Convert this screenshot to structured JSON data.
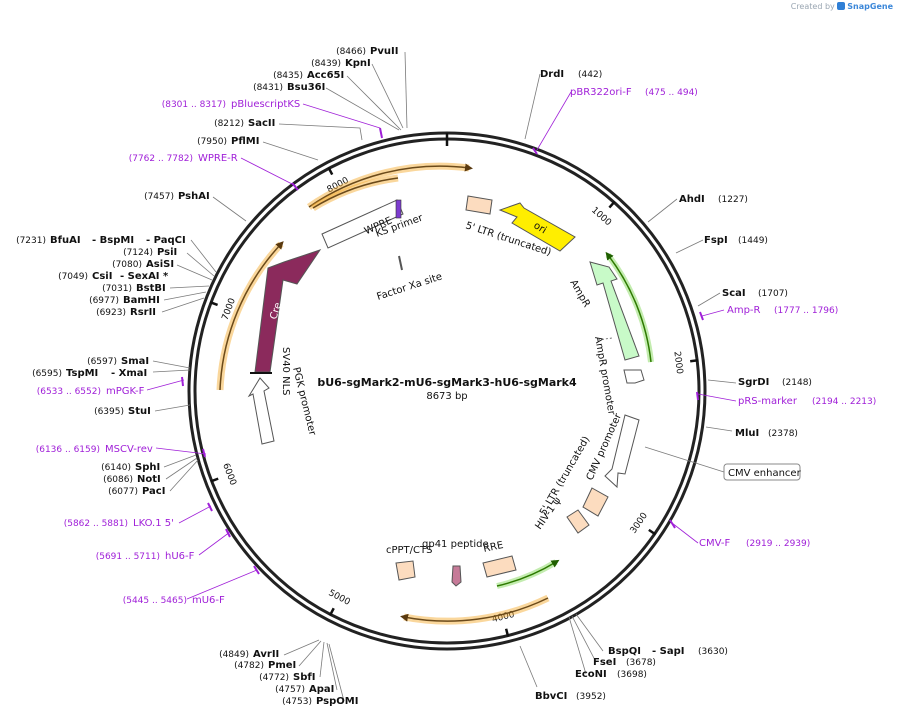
{
  "credit": {
    "prefix": "Created by",
    "brand": "SnapGene"
  },
  "plasmid": {
    "name": "bU6-sgMark2-mU6-sgMark3-hU6-sgMark4",
    "size_label": "8673 bp",
    "length": 8673
  },
  "ticks": [
    "1000",
    "2000",
    "3000",
    "4000",
    "5000",
    "6000",
    "7000",
    "8000"
  ],
  "colors": {
    "orf": "#8b2a5c",
    "ori": "#ffee00",
    "ampr": "#c8fac8",
    "ltr": "#fcdcbf",
    "orange": "#f5a623",
    "green": "#2d9c00",
    "primer": "#a020d8"
  },
  "enzymes": [
    {
      "name": "PvuII",
      "pos": "(8466)"
    },
    {
      "name": "KpnI",
      "pos": "(8439)"
    },
    {
      "name": "Acc65I",
      "pos": "(8435)"
    },
    {
      "name": "Bsu36I",
      "pos": "(8431)"
    },
    {
      "name": "SacII",
      "pos": "(8212)"
    },
    {
      "name": "PflMI",
      "pos": "(7950)"
    },
    {
      "name": "PshAI",
      "pos": "(7457)"
    },
    {
      "name": "BfuAI",
      "pos": "(7231)"
    },
    {
      "name": "- BspMI",
      "pos": ""
    },
    {
      "name": "- PaqCI",
      "pos": ""
    },
    {
      "name": "PsiI",
      "pos": "(7124)"
    },
    {
      "name": "AsiSI",
      "pos": "(7080)"
    },
    {
      "name": "CsiI",
      "pos": "(7049)"
    },
    {
      "name": "- SexAI *",
      "pos": ""
    },
    {
      "name": "BstBI",
      "pos": "(7031)"
    },
    {
      "name": "BamHI",
      "pos": "(6977)"
    },
    {
      "name": "RsrII",
      "pos": "(6923)"
    },
    {
      "name": "SmaI",
      "pos": "(6597)"
    },
    {
      "name": "TspMI",
      "pos": "(6595)"
    },
    {
      "name": "- XmaI",
      "pos": ""
    },
    {
      "name": "StuI",
      "pos": "(6395)"
    },
    {
      "name": "SphI",
      "pos": "(6140)"
    },
    {
      "name": "NotI",
      "pos": "(6086)"
    },
    {
      "name": "PacI",
      "pos": "(6077)"
    },
    {
      "name": "AvrII",
      "pos": "(4849)"
    },
    {
      "name": "PmeI",
      "pos": "(4782)"
    },
    {
      "name": "SbfI",
      "pos": "(4772)"
    },
    {
      "name": "ApaI",
      "pos": "(4757)"
    },
    {
      "name": "PspOMI",
      "pos": "(4753)"
    },
    {
      "name": "BbvCI",
      "pos": "(3952)"
    },
    {
      "name": "EcoNI",
      "pos": "(3698)"
    },
    {
      "name": "FseI",
      "pos": "(3678)"
    },
    {
      "name": "BspQI",
      "pos": ""
    },
    {
      "name": "- SapI",
      "pos": "(3630)"
    },
    {
      "name": "MluI",
      "pos": "(2378)"
    },
    {
      "name": "SgrDI",
      "pos": "(2148)"
    },
    {
      "name": "ScaI",
      "pos": "(1707)"
    },
    {
      "name": "FspI",
      "pos": "(1449)"
    },
    {
      "name": "AhdI",
      "pos": "(1227)"
    },
    {
      "name": "DrdI",
      "pos": "(442)"
    }
  ],
  "primers": [
    {
      "name": "pBluescriptKS",
      "range": "(8301 .. 8317)"
    },
    {
      "name": "WPRE-R",
      "range": "(7762 .. 7782)"
    },
    {
      "name": "mPGK-F",
      "range": "(6533 .. 6552)"
    },
    {
      "name": "MSCV-rev",
      "range": "(6136 .. 6159)"
    },
    {
      "name": "LKO.1 5'",
      "range": "(5862 .. 5881)"
    },
    {
      "name": "hU6-F",
      "range": "(5691 .. 5711)"
    },
    {
      "name": "mU6-F",
      "range": "(5445 .. 5465)"
    },
    {
      "name": "CMV-F",
      "range": "(2919 .. 2939)"
    },
    {
      "name": "pRS-marker",
      "range": "(2194 .. 2213)"
    },
    {
      "name": "Amp-R",
      "range": "(1777 .. 1796)"
    },
    {
      "name": "pBR322ori-F",
      "range": "(475 .. 494)"
    }
  ],
  "features": {
    "wpre": "WPRE",
    "ks_primer": "KS primer",
    "factor_xa": "Factor Xa site",
    "ltr_trunc_top": "5' LTR (truncated)",
    "ori": "ori",
    "ampr": "AmpR",
    "ampr_promoter": "AmpR promoter",
    "cmv_promoter": "CMV promoter",
    "cmv_enhancer": "CMV enhancer",
    "ltr_trunc_bottom": "5' LTR (truncated)",
    "hiv_psi": "HIV-1 ψ",
    "rre": "RRE",
    "gp41": "gp41 peptide",
    "cppt": "cPPT/CTS",
    "cre": "Cre",
    "sv40_nls": "SV40 NLS",
    "pgk_promoter": "PGK promoter"
  }
}
